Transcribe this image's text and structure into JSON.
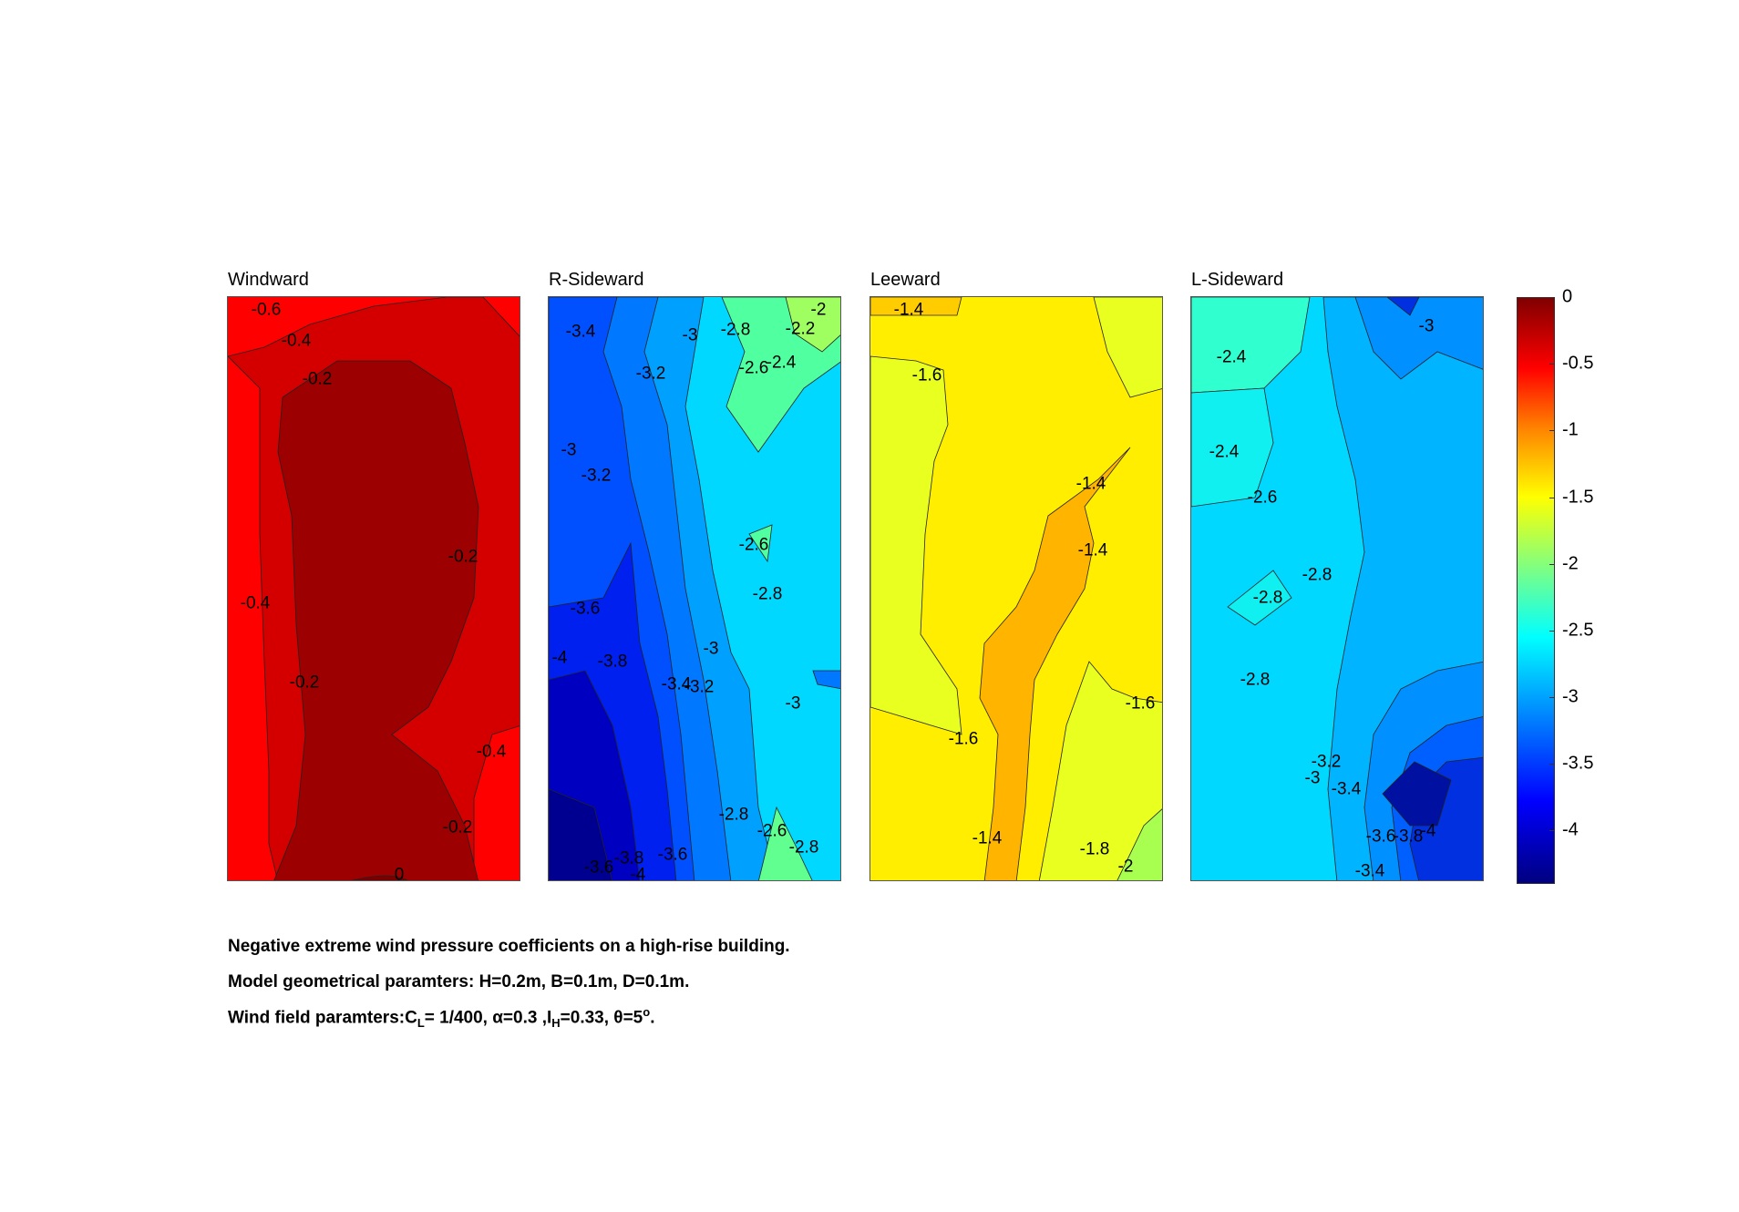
{
  "chart_data": {
    "type": "heatmap",
    "panels": [
      {
        "title": "Windward",
        "contour_labels": [
          "-0.6",
          "-0.4",
          "-0.2",
          "-0.2",
          "-0.4",
          "-0.2",
          "-0.4",
          "-0.2",
          "0"
        ]
      },
      {
        "title": "R-Sideward",
        "contour_labels": [
          "-3.4",
          "-3",
          "-2.8",
          "-2.2",
          "-2",
          "-3.2",
          "-2.6",
          "-2.4",
          "-3",
          "-3.2",
          "-2.6",
          "-2.8",
          "-3.6",
          "-3",
          "-3.8",
          "-4",
          "-3.4",
          "-3.2",
          "-3",
          "-2.8",
          "-2.6",
          "-2.8",
          "-3.6",
          "-3.8",
          "-4",
          "-3.6"
        ]
      },
      {
        "title": "Leeward",
        "contour_labels": [
          "-1.4",
          "-1.6",
          "-1.4",
          "-1.4",
          "-1.6",
          "-1.6",
          "-1.4",
          "-1.8",
          "-2"
        ]
      },
      {
        "title": "L-Sideward",
        "contour_labels": [
          "-3",
          "-2.4",
          "-2.4",
          "-2.6",
          "-2.8",
          "-2.8",
          "-2.8",
          "-3.2",
          "-3",
          "-3.4",
          "-3.6",
          "-3.8",
          "-4",
          "-3.4"
        ]
      }
    ],
    "colorbar": {
      "range": [
        -4.4,
        0
      ],
      "ticks": [
        "0",
        "-0.5",
        "-1",
        "-1.5",
        "-2",
        "-2.5",
        "-3",
        "-3.5",
        "-4"
      ],
      "colormap": "jet"
    }
  },
  "caption": {
    "line1": "Negative extreme wind pressure coefficients on a high-rise building.",
    "line2": "Model geometrical paramters: H=0.2m, B=0.1m, D=0.1m.",
    "line3_prefix": "Wind field paramters:C",
    "line3_sub_L": "L",
    "line3_mid": "= 1/400, α=0.3 ,I",
    "line3_sub_H": "H",
    "line3_rest": "=0.33, θ=5",
    "line3_sup": "o",
    "line3_end": "."
  }
}
